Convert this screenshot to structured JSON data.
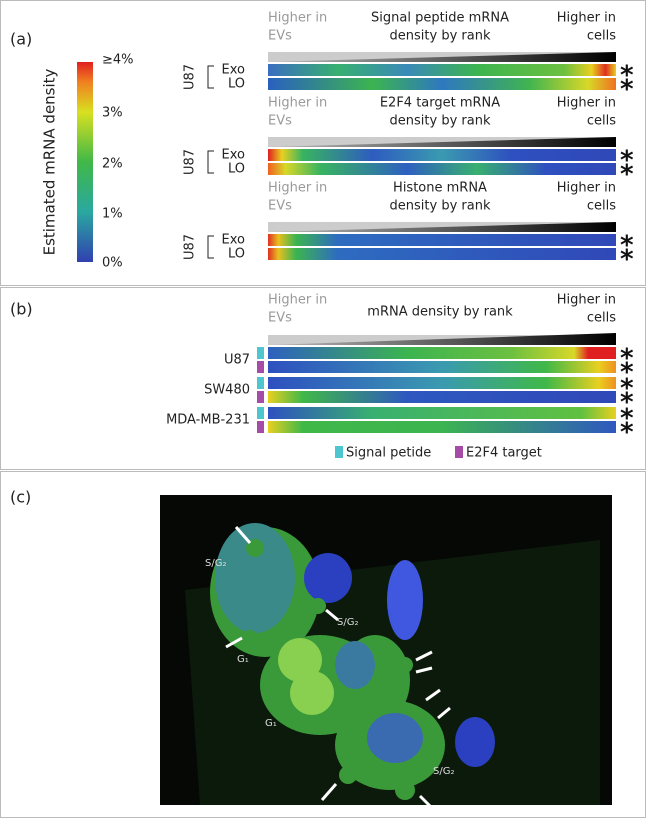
{
  "panel_a": {
    "label": "(a)",
    "colorbar": {
      "title": "Estimated mRNA density",
      "ticks": [
        "≥4%",
        "3%",
        "2%",
        "1%",
        "0%"
      ]
    },
    "cell_line": "U87",
    "rows": [
      "Exo",
      "LO"
    ],
    "marker": "*",
    "blocks": [
      {
        "left": [
          "Higher in",
          "EVs"
        ],
        "title": [
          "Signal peptide mRNA",
          "density by rank"
        ],
        "right": [
          "Higher in",
          "cells"
        ]
      },
      {
        "left": [
          "Higher in",
          "EVs"
        ],
        "title": [
          "E2F4 target mRNA",
          "density by rank"
        ],
        "right": [
          "Higher in",
          "cells"
        ]
      },
      {
        "left": [
          "Higher in",
          "EVs"
        ],
        "title": [
          "Histone mRNA",
          "density by rank"
        ],
        "right": [
          "Higher in",
          "cells"
        ]
      }
    ]
  },
  "panel_b": {
    "label": "(b)",
    "left": [
      "Higher in",
      "EVs"
    ],
    "title": "mRNA density by rank",
    "right": [
      "Higher in",
      "cells"
    ],
    "rows": [
      "U87",
      "SW480",
      "MDA-MB-231"
    ],
    "marker": "*",
    "legend": [
      "Signal petide",
      "E2F4 target"
    ]
  },
  "panel_c": {
    "label": "(c)",
    "annotations": [
      "S/G₂",
      "S/G₂",
      "G₁",
      "G₁",
      "S/G₂"
    ]
  }
}
